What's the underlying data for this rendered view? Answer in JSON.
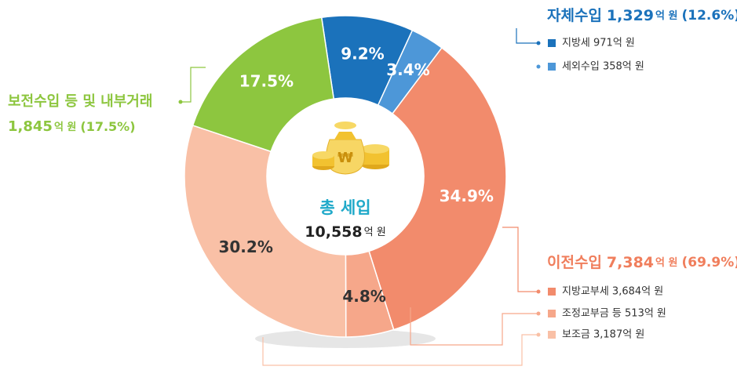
{
  "chart_data": {
    "type": "donut",
    "categories": [
      "지방세 971억 원",
      "세외수입 358억 원",
      "지방교부세 3,684억 원",
      "조정교부금 등 513억 원",
      "보조금 3,187억 원",
      "보전수입 등 및 내부거래"
    ],
    "values": [
      9.2,
      3.4,
      34.9,
      4.8,
      30.2,
      17.5
    ],
    "value_labels": [
      "9.2%",
      "3.4%",
      "34.9%",
      "4.8%",
      "30.2%",
      "17.5%"
    ],
    "colors": [
      "#1b72bb",
      "#4d97d8",
      "#f28b6c",
      "#f6a78a",
      "#f9c0a6",
      "#8dc63f"
    ],
    "label_colors": [
      "#ffffff",
      "#ffffff",
      "#ffffff",
      "#333333",
      "#333333",
      "#ffffff"
    ],
    "center": {
      "title": "총 세입",
      "amount": "10,558",
      "unit": "억 원"
    },
    "groups": [
      {
        "title": "자체수입",
        "amount": "1,329",
        "unit": "억 원",
        "share": "(12.6%)",
        "color": "#1b72bb"
      },
      {
        "title": "이전수입",
        "amount": "7,384",
        "unit": "억 원",
        "share": "(69.9%)",
        "color": "#f07e5c"
      },
      {
        "amount": "1,845",
        "unit": "억 원",
        "share": "(17.5%)",
        "color": "#8dc63f"
      }
    ]
  }
}
